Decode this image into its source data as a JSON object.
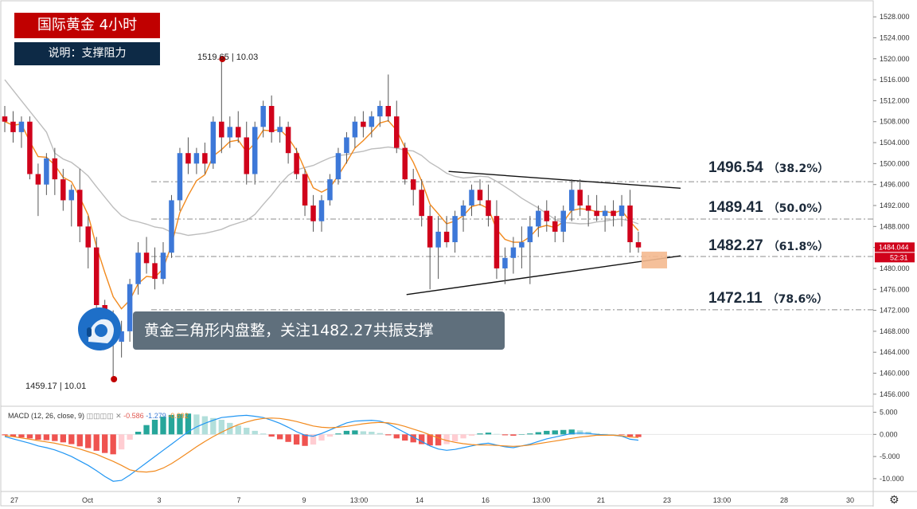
{
  "title": "国际黄金 4小时",
  "subtitle": "说明：支撑阻力",
  "annotation": "黄金三角形内盘整，关注1482.27共振支撑",
  "high_marker": {
    "price": "1519.65",
    "sep": "|",
    "date": "10.03"
  },
  "low_marker": {
    "price": "1459.17",
    "sep": "|",
    "date": "10.01"
  },
  "fib_levels": [
    {
      "price": "1496.54",
      "pct": "（38.2%）"
    },
    {
      "price": "1489.41",
      "pct": "（50.0%）"
    },
    {
      "price": "1482.27",
      "pct": "（61.8%）"
    },
    {
      "price": "1472.11",
      "pct": "（78.6%）"
    }
  ],
  "last_price": {
    "value": "1484.044",
    "timer": "52:31"
  },
  "macd_legend": {
    "label": "MACD (12, 26, close, 9)",
    "hist": "-0.586",
    "macd": "-1.279",
    "signal": "-0.692"
  },
  "icons": {
    "avatar": "analyst-avatar-icon",
    "settings": "gear-icon"
  },
  "colors": {
    "up": "#3d78d8",
    "down": "#d0021b",
    "ema_fast": "#f28a1e",
    "ma_slow": "#bdbdbd",
    "title_bg": "#c00000",
    "sub_bg": "#0d2a46"
  },
  "chart_data": [
    {
      "type": "candlestick",
      "title": "国际黄金 4小时",
      "y_ticks": [
        "1528.000",
        "1524.000",
        "1520.000",
        "1516.000",
        "1512.000",
        "1508.000",
        "1504.000",
        "1500.000",
        "1496.000",
        "1492.000",
        "1488.000",
        "1484.000",
        "1480.000",
        "1476.000",
        "1472.000",
        "1468.000",
        "1464.000",
        "1460.000",
        "1456.000"
      ],
      "ylim": [
        1454,
        1530
      ],
      "x_ticks": [
        "27",
        "Oct",
        "3",
        "7",
        "9",
        "13:00",
        "14",
        "16",
        "13:00",
        "21",
        "23",
        "13:00",
        "28",
        "30"
      ],
      "candles": [
        [
          1509,
          1511,
          1506,
          1508
        ],
        [
          1508,
          1510,
          1504,
          1506
        ],
        [
          1506,
          1509,
          1503,
          1508
        ],
        [
          1508,
          1509,
          1497,
          1498
        ],
        [
          1498,
          1500,
          1490,
          1496
        ],
        [
          1496,
          1502,
          1494,
          1501
        ],
        [
          1501,
          1503,
          1494,
          1497
        ],
        [
          1497,
          1499,
          1491,
          1493
        ],
        [
          1493,
          1496,
          1488,
          1495
        ],
        [
          1495,
          1499,
          1485,
          1488
        ],
        [
          1488,
          1490,
          1480,
          1484
        ],
        [
          1484,
          1486,
          1472,
          1473
        ],
        [
          1473,
          1474,
          1466,
          1470
        ],
        [
          1470,
          1472,
          1459,
          1466
        ],
        [
          1466,
          1470,
          1463,
          1468
        ],
        [
          1468,
          1478,
          1466,
          1477
        ],
        [
          1477,
          1485,
          1475,
          1483
        ],
        [
          1483,
          1486,
          1479,
          1481
        ],
        [
          1481,
          1484,
          1476,
          1478
        ],
        [
          1478,
          1485,
          1477,
          1483
        ],
        [
          1483,
          1494,
          1482,
          1493
        ],
        [
          1493,
          1503,
          1491,
          1502
        ],
        [
          1502,
          1505,
          1498,
          1500
        ],
        [
          1500,
          1503,
          1498,
          1502
        ],
        [
          1502,
          1504,
          1498,
          1500
        ],
        [
          1500,
          1509,
          1499,
          1508
        ],
        [
          1508,
          1519.65,
          1502,
          1505
        ],
        [
          1505,
          1509,
          1503,
          1507
        ],
        [
          1507,
          1510,
          1504,
          1505
        ],
        [
          1505,
          1508,
          1496,
          1498
        ],
        [
          1498,
          1508,
          1496,
          1507
        ],
        [
          1507,
          1512,
          1505,
          1511
        ],
        [
          1511,
          1513,
          1504,
          1506
        ],
        [
          1506,
          1509,
          1504,
          1507
        ],
        [
          1507,
          1508,
          1500,
          1502
        ],
        [
          1502,
          1503,
          1497,
          1498
        ],
        [
          1498,
          1499,
          1490,
          1492
        ],
        [
          1492,
          1494,
          1487,
          1489
        ],
        [
          1489,
          1494,
          1487,
          1493
        ],
        [
          1493,
          1498,
          1492,
          1497
        ],
        [
          1497,
          1503,
          1496,
          1502
        ],
        [
          1502,
          1506,
          1500,
          1505
        ],
        [
          1505,
          1509,
          1503,
          1508
        ],
        [
          1508,
          1510,
          1505,
          1507
        ],
        [
          1507,
          1510,
          1505,
          1509
        ],
        [
          1509,
          1512,
          1507,
          1511
        ],
        [
          1511,
          1517,
          1508,
          1509
        ],
        [
          1509,
          1512,
          1502,
          1503
        ],
        [
          1503,
          1504,
          1496,
          1497
        ],
        [
          1497,
          1499,
          1492,
          1495
        ],
        [
          1495,
          1497,
          1488,
          1490
        ],
        [
          1490,
          1492,
          1476,
          1484
        ],
        [
          1484,
          1490,
          1478,
          1487
        ],
        [
          1487,
          1490,
          1484,
          1485
        ],
        [
          1485,
          1491,
          1483,
          1490
        ],
        [
          1490,
          1493,
          1487,
          1492
        ],
        [
          1492,
          1496,
          1490,
          1495
        ],
        [
          1495,
          1497,
          1492,
          1493
        ],
        [
          1493,
          1496,
          1488,
          1490
        ],
        [
          1490,
          1493,
          1478,
          1480
        ],
        [
          1480,
          1484,
          1477,
          1482
        ],
        [
          1482,
          1486,
          1479,
          1484
        ],
        [
          1484,
          1488,
          1480,
          1485
        ],
        [
          1485,
          1490,
          1477,
          1488
        ],
        [
          1488,
          1492,
          1486,
          1491
        ],
        [
          1491,
          1493,
          1487,
          1489
        ],
        [
          1489,
          1490,
          1485,
          1487
        ],
        [
          1487,
          1492,
          1485,
          1491
        ],
        [
          1491,
          1497,
          1489,
          1495
        ],
        [
          1495,
          1497,
          1490,
          1492
        ],
        [
          1492,
          1494,
          1488,
          1491
        ],
        [
          1491,
          1494,
          1489,
          1490
        ],
        [
          1490,
          1492,
          1487,
          1491
        ],
        [
          1491,
          1493,
          1488,
          1490
        ],
        [
          1490,
          1494,
          1488,
          1492
        ],
        [
          1492,
          1495,
          1483,
          1485
        ],
        [
          1485,
          1487,
          1483,
          1484
        ]
      ]
    },
    {
      "type": "bar",
      "title": "MACD (12, 26, close, 9)",
      "y_ticks": [
        "5.000",
        "0.000",
        "-5.000",
        "-10.000"
      ],
      "ylim": [
        -12,
        6
      ],
      "series": [
        {
          "name": "MACD",
          "values": [
            -0.5,
            -1,
            -1.5,
            -2,
            -2.6,
            -3,
            -3.5,
            -4.2,
            -5,
            -6,
            -7,
            -8.2,
            -9.5,
            -10.6,
            -10.4,
            -9.2,
            -7.8,
            -6.4,
            -5,
            -3.6,
            -2.2,
            -0.8,
            0.6,
            1.7,
            2.5,
            3.2,
            3.8,
            4,
            4.2,
            4.3,
            4.1,
            3.8,
            3.2,
            2.5,
            1.6,
            0.6,
            -0.2,
            -0.4,
            0.2,
            1,
            1.8,
            2.6,
            3,
            3.1,
            3.2,
            3,
            2.4,
            1.4,
            0.4,
            -0.6,
            -1.6,
            -2.6,
            -3.3,
            -3.6,
            -3.4,
            -3,
            -2.6,
            -2.2,
            -2,
            -2.4,
            -2.8,
            -3,
            -2.6,
            -2.2,
            -1.6,
            -1,
            -0.6,
            -0.2,
            0.2,
            0.3,
            0.2,
            0,
            -0.1,
            -0.2,
            -0.4,
            -1.1,
            -1.3
          ]
        },
        {
          "name": "Signal",
          "values": [
            -0.3,
            -0.5,
            -0.8,
            -1.1,
            -1.4,
            -1.7,
            -2,
            -2.4,
            -2.8,
            -3.3,
            -3.9,
            -4.5,
            -5.3,
            -6.1,
            -7,
            -8,
            -8.4,
            -8.5,
            -8.3,
            -7.6,
            -6.6,
            -5.4,
            -4.1,
            -2.8,
            -1.6,
            -0.5,
            0.5,
            1.4,
            2.2,
            2.8,
            3.3,
            3.6,
            3.7,
            3.6,
            3.3,
            2.9,
            2.4,
            1.9,
            1.6,
            1.5,
            1.6,
            1.8,
            2.1,
            2.4,
            2.6,
            2.7,
            2.6,
            2.3,
            1.8,
            1.2,
            0.6,
            -0.1,
            -0.8,
            -1.4,
            -1.8,
            -2.1,
            -2.3,
            -2.4,
            -2.4,
            -2.5,
            -2.6,
            -2.7,
            -2.6,
            -2.4,
            -2.1,
            -1.8,
            -1.5,
            -1.2,
            -0.9,
            -0.6,
            -0.4,
            -0.2,
            -0.2,
            -0.2,
            -0.3,
            -0.6,
            -0.7
          ]
        },
        {
          "name": "Histogram",
          "values": [
            -0.2,
            -0.5,
            -0.7,
            -0.9,
            -1.2,
            -1.3,
            -1.5,
            -1.8,
            -2.2,
            -2.7,
            -3.1,
            -3.7,
            -4.2,
            -4.5,
            -3.4,
            -1.2,
            0.6,
            2.1,
            3.3,
            4,
            4.4,
            4.6,
            4.7,
            4.5,
            4.1,
            3.7,
            3.3,
            2.6,
            2,
            1.5,
            0.8,
            0.2,
            -0.5,
            -1.1,
            -1.7,
            -2.3,
            -2.6,
            -2.3,
            -1.4,
            -0.5,
            0.2,
            0.8,
            0.9,
            0.7,
            0.6,
            0.3,
            -0.2,
            -0.9,
            -1.4,
            -1.8,
            -2.2,
            -2.5,
            -2.5,
            -2.2,
            -1.6,
            -0.9,
            -0.3,
            0.2,
            0.4,
            0.1,
            -0.2,
            -0.3,
            0,
            0.2,
            0.5,
            0.8,
            0.9,
            1,
            1.1,
            0.9,
            0.6,
            0.2,
            0.1,
            0,
            -0.1,
            -0.5,
            -0.6
          ]
        }
      ]
    }
  ]
}
